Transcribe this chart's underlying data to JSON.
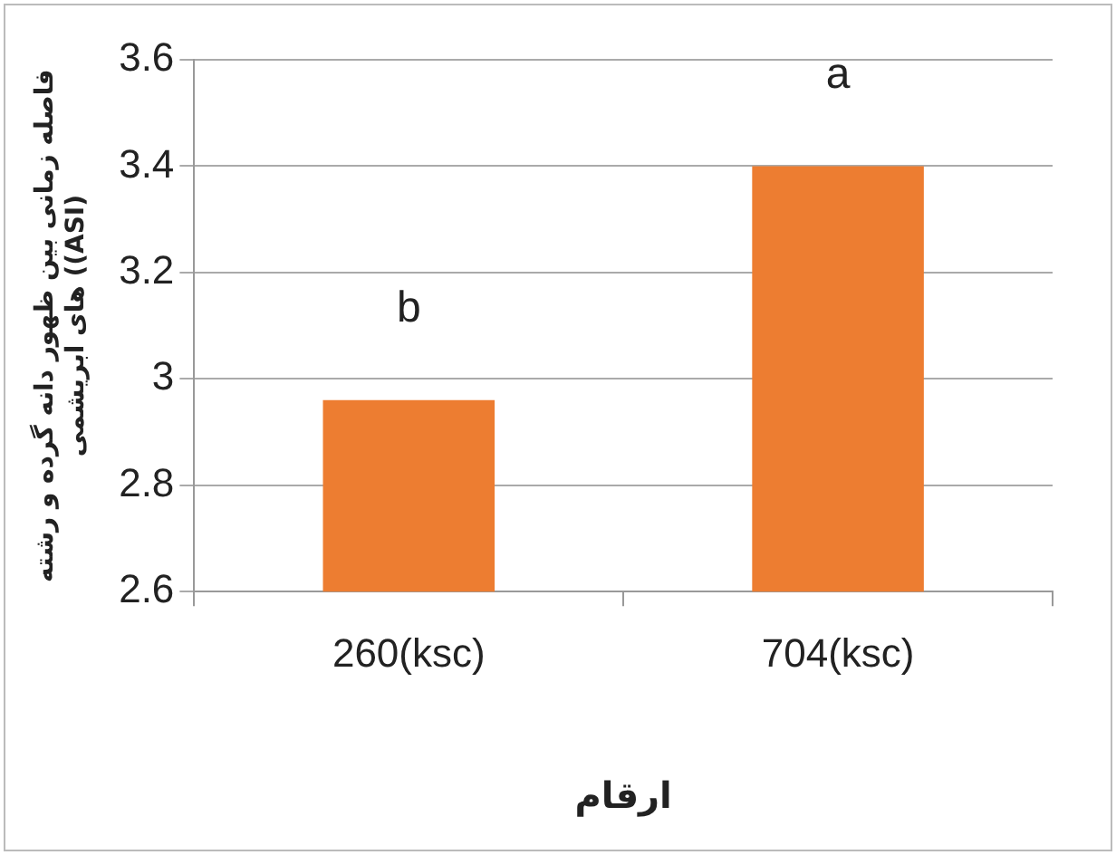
{
  "chart_data": {
    "type": "bar",
    "xlabel": "ارقام",
    "ylabel": [
      "فاصله زمانی بین ظهور دانه گرده و رشته",
      "های ابریشمی ((ASI)"
    ],
    "categories": [
      "260(ksc)",
      "704(ksc)"
    ],
    "values": [
      2.96,
      3.4
    ],
    "color": "#ed7d31",
    "ylim": [
      2.6,
      3.6
    ],
    "yticks": [
      2.6,
      2.8,
      3,
      3.2,
      3.4,
      3.6
    ],
    "grid": "y",
    "legend": false,
    "annotations": [
      "b",
      "a"
    ]
  }
}
